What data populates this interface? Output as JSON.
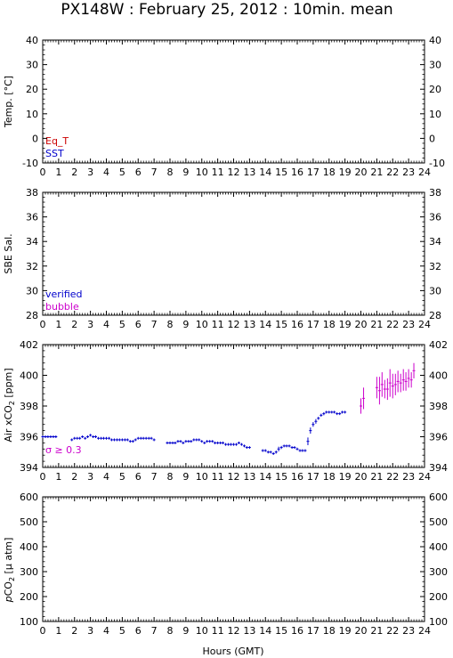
{
  "title": "PX148W : February 25, 2012 : 10min. mean",
  "xlabel": "Hours (GMT)",
  "colors": {
    "eq_t": "#cc0000",
    "sst": "#0000cc",
    "verified": "#0000cc",
    "bubble": "#cc00cc",
    "sigma": "#cc00cc",
    "air": "#0000cc"
  },
  "chart_data": [
    {
      "type": "scatter",
      "ylabel": "Temp. [°C]",
      "ylim": [
        -10,
        40
      ],
      "yticks": [
        -10,
        0,
        10,
        20,
        30,
        40
      ],
      "xlim": [
        0,
        24
      ],
      "legend": [
        "Eq_T",
        "SST"
      ],
      "series": []
    },
    {
      "type": "scatter",
      "ylabel": "SBE Sal.",
      "ylim": [
        28,
        38
      ],
      "yticks": [
        28,
        30,
        32,
        34,
        36,
        38
      ],
      "xlim": [
        0,
        24
      ],
      "legend": [
        "verified",
        "bubble"
      ],
      "series": []
    },
    {
      "type": "scatter",
      "ylabel_main": "Air xCO",
      "ylabel_sub": "2",
      "ylabel_tail": " [ppm]",
      "ylim": [
        394,
        402
      ],
      "yticks": [
        394,
        396,
        398,
        400,
        402
      ],
      "xlim": [
        0,
        24
      ],
      "annotation": "σ ≥ 0.3",
      "series": [
        {
          "name": "Air xCO2",
          "points": [
            [
              0.0,
              396.0,
              0.05
            ],
            [
              0.17,
              396.0,
              0.05
            ],
            [
              0.33,
              396.0,
              0.05
            ],
            [
              0.5,
              396.0,
              0.05
            ],
            [
              0.67,
              396.0,
              0.05
            ],
            [
              0.83,
              396.0,
              0.05
            ],
            [
              1.83,
              395.8,
              0.05
            ],
            [
              2.0,
              395.9,
              0.05
            ],
            [
              2.17,
              395.9,
              0.05
            ],
            [
              2.33,
              395.9,
              0.05
            ],
            [
              2.5,
              396.0,
              0.05
            ],
            [
              2.67,
              395.9,
              0.05
            ],
            [
              2.83,
              396.0,
              0.05
            ],
            [
              3.0,
              396.1,
              0.05
            ],
            [
              3.17,
              396.0,
              0.05
            ],
            [
              3.33,
              396.0,
              0.05
            ],
            [
              3.5,
              395.9,
              0.05
            ],
            [
              3.67,
              395.9,
              0.05
            ],
            [
              3.83,
              395.9,
              0.05
            ],
            [
              4.0,
              395.9,
              0.05
            ],
            [
              4.17,
              395.9,
              0.05
            ],
            [
              4.33,
              395.8,
              0.05
            ],
            [
              4.5,
              395.8,
              0.05
            ],
            [
              4.67,
              395.8,
              0.05
            ],
            [
              4.83,
              395.8,
              0.05
            ],
            [
              5.0,
              395.8,
              0.05
            ],
            [
              5.17,
              395.8,
              0.05
            ],
            [
              5.33,
              395.8,
              0.05
            ],
            [
              5.5,
              395.7,
              0.05
            ],
            [
              5.67,
              395.7,
              0.05
            ],
            [
              5.83,
              395.8,
              0.05
            ],
            [
              6.0,
              395.9,
              0.05
            ],
            [
              6.17,
              395.9,
              0.05
            ],
            [
              6.33,
              395.9,
              0.05
            ],
            [
              6.5,
              395.9,
              0.05
            ],
            [
              6.67,
              395.9,
              0.05
            ],
            [
              6.83,
              395.9,
              0.05
            ],
            [
              7.0,
              395.8,
              0.05
            ],
            [
              7.83,
              395.6,
              0.05
            ],
            [
              8.0,
              395.6,
              0.05
            ],
            [
              8.17,
              395.6,
              0.05
            ],
            [
              8.33,
              395.6,
              0.05
            ],
            [
              8.5,
              395.7,
              0.05
            ],
            [
              8.67,
              395.7,
              0.05
            ],
            [
              8.83,
              395.6,
              0.05
            ],
            [
              9.0,
              395.7,
              0.05
            ],
            [
              9.17,
              395.7,
              0.05
            ],
            [
              9.33,
              395.7,
              0.05
            ],
            [
              9.5,
              395.8,
              0.05
            ],
            [
              9.67,
              395.8,
              0.05
            ],
            [
              9.83,
              395.8,
              0.05
            ],
            [
              10.0,
              395.7,
              0.05
            ],
            [
              10.17,
              395.6,
              0.05
            ],
            [
              10.33,
              395.7,
              0.05
            ],
            [
              10.5,
              395.7,
              0.05
            ],
            [
              10.67,
              395.7,
              0.05
            ],
            [
              10.83,
              395.6,
              0.05
            ],
            [
              11.0,
              395.6,
              0.05
            ],
            [
              11.17,
              395.6,
              0.05
            ],
            [
              11.33,
              395.6,
              0.05
            ],
            [
              11.5,
              395.5,
              0.05
            ],
            [
              11.67,
              395.5,
              0.05
            ],
            [
              11.83,
              395.5,
              0.05
            ],
            [
              12.0,
              395.5,
              0.05
            ],
            [
              12.17,
              395.5,
              0.05
            ],
            [
              12.33,
              395.6,
              0.05
            ],
            [
              12.5,
              395.5,
              0.05
            ],
            [
              12.67,
              395.4,
              0.05
            ],
            [
              12.83,
              395.3,
              0.05
            ],
            [
              13.0,
              395.3,
              0.05
            ],
            [
              13.83,
              395.1,
              0.05
            ],
            [
              14.0,
              395.1,
              0.05
            ],
            [
              14.17,
              395.0,
              0.05
            ],
            [
              14.33,
              395.0,
              0.05
            ],
            [
              14.5,
              394.9,
              0.05
            ],
            [
              14.67,
              395.0,
              0.1
            ],
            [
              14.83,
              395.2,
              0.15
            ],
            [
              15.0,
              395.3,
              0.1
            ],
            [
              15.17,
              395.4,
              0.05
            ],
            [
              15.33,
              395.4,
              0.05
            ],
            [
              15.5,
              395.4,
              0.05
            ],
            [
              15.67,
              395.3,
              0.05
            ],
            [
              15.83,
              395.3,
              0.05
            ],
            [
              16.0,
              395.2,
              0.05
            ],
            [
              16.17,
              395.1,
              0.05
            ],
            [
              16.33,
              395.1,
              0.05
            ],
            [
              16.5,
              395.1,
              0.05
            ],
            [
              16.67,
              395.7,
              0.25
            ],
            [
              16.83,
              396.4,
              0.2
            ],
            [
              17.0,
              396.8,
              0.15
            ],
            [
              17.17,
              397.0,
              0.15
            ],
            [
              17.33,
              397.2,
              0.1
            ],
            [
              17.5,
              397.4,
              0.1
            ],
            [
              17.67,
              397.5,
              0.1
            ],
            [
              17.83,
              397.6,
              0.05
            ],
            [
              18.0,
              397.6,
              0.05
            ],
            [
              18.17,
              397.6,
              0.05
            ],
            [
              18.33,
              397.6,
              0.05
            ],
            [
              18.5,
              397.5,
              0.05
            ],
            [
              18.67,
              397.5,
              0.05
            ],
            [
              18.83,
              397.6,
              0.05
            ],
            [
              19.0,
              397.6,
              0.05
            ]
          ]
        },
        {
          "name": "sigma >= 0.3",
          "points": [
            [
              20.0,
              398.0,
              0.5
            ],
            [
              20.17,
              398.5,
              0.7
            ],
            [
              21.0,
              399.2,
              0.7
            ],
            [
              21.17,
              399.0,
              0.9
            ],
            [
              21.33,
              399.4,
              0.8
            ],
            [
              21.5,
              399.1,
              0.6
            ],
            [
              21.67,
              399.1,
              0.7
            ],
            [
              21.83,
              399.5,
              0.9
            ],
            [
              22.0,
              399.3,
              0.8
            ],
            [
              22.17,
              399.4,
              0.7
            ],
            [
              22.33,
              399.6,
              0.7
            ],
            [
              22.5,
              399.5,
              0.6
            ],
            [
              22.67,
              399.7,
              0.7
            ],
            [
              22.83,
              399.6,
              0.6
            ],
            [
              23.0,
              399.8,
              0.6
            ],
            [
              23.17,
              399.7,
              0.5
            ],
            [
              23.33,
              400.3,
              0.5
            ]
          ]
        }
      ]
    },
    {
      "type": "scatter",
      "ylabel_pre": "p",
      "ylabel_main": "CO",
      "ylabel_sub": "2",
      "ylabel_tail": " [μ atm]",
      "ylim": [
        100,
        600
      ],
      "yticks": [
        100,
        200,
        300,
        400,
        500,
        600
      ],
      "xlim": [
        0,
        24
      ],
      "series": []
    }
  ]
}
